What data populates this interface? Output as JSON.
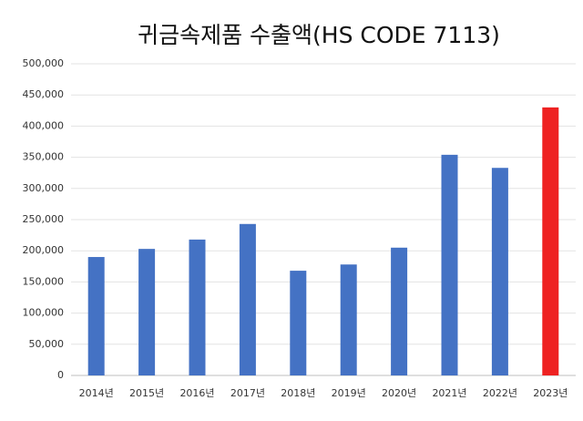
{
  "chart_data": {
    "type": "bar",
    "title": "귀금속제품 수출액(HS CODE 7113)",
    "categories": [
      "2014년",
      "2015년",
      "2016년",
      "2017년",
      "2018년",
      "2019년",
      "2020년",
      "2021년",
      "2022년",
      "2023년"
    ],
    "values": [
      190000,
      203000,
      218000,
      243000,
      168000,
      178000,
      205000,
      354000,
      333000,
      430000
    ],
    "colors": [
      "#4472c4",
      "#4472c4",
      "#4472c4",
      "#4472c4",
      "#4472c4",
      "#4472c4",
      "#4472c4",
      "#4472c4",
      "#4472c4",
      "#ee2222"
    ],
    "ylim": [
      0,
      500000
    ],
    "yticks": [
      0,
      {
        "value": 50000,
        "label": "50,000"
      },
      {
        "value": 100000,
        "label": "100,000"
      },
      {
        "value": 150000,
        "label": "150,000"
      },
      {
        "value": 200000,
        "label": "200,000"
      },
      {
        "value": 250000,
        "label": "250,000"
      },
      {
        "value": 300000,
        "label": "300,000"
      },
      {
        "value": 350000,
        "label": "350,000"
      },
      {
        "value": 400000,
        "label": "400,000"
      },
      {
        "value": 450000,
        "label": "450,000"
      },
      {
        "value": 500000,
        "label": "500,000"
      }
    ],
    "grid": true
  }
}
